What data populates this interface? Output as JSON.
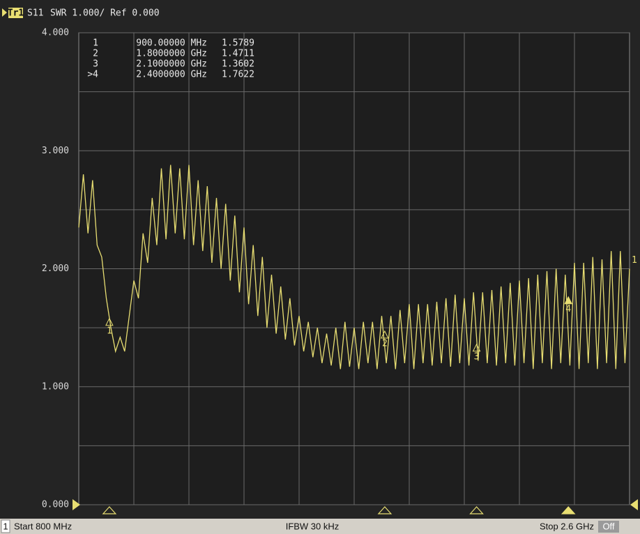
{
  "chart_data": {
    "type": "line",
    "header": {
      "trace": "Tr1",
      "parameter": "S11",
      "scale": "SWR 1.000/ Ref 0.000"
    },
    "xlim": [
      800,
      2600
    ],
    "ylim": [
      0,
      4
    ],
    "yticks": [
      {
        "value": 0,
        "label": "0.000"
      },
      {
        "value": 1,
        "label": "1.000"
      },
      {
        "value": 2,
        "label": "2.000"
      },
      {
        "value": 3,
        "label": "3.000"
      },
      {
        "value": 4,
        "label": "4.000"
      }
    ],
    "ygrid": [
      0.5,
      1.5,
      2.5,
      3.5
    ],
    "xgrid": [
      980,
      1160,
      1340,
      1520,
      1700,
      1880,
      2060,
      2240,
      2420
    ],
    "grid": true,
    "x": [
      800,
      815,
      830,
      845,
      860,
      875,
      890,
      905,
      920,
      935,
      950,
      965,
      980,
      995,
      1010,
      1025,
      1040,
      1055,
      1070,
      1085,
      1100,
      1115,
      1130,
      1145,
      1160,
      1175,
      1190,
      1205,
      1220,
      1235,
      1250,
      1265,
      1280,
      1295,
      1310,
      1325,
      1340,
      1355,
      1370,
      1385,
      1400,
      1415,
      1430,
      1445,
      1460,
      1475,
      1490,
      1505,
      1520,
      1535,
      1550,
      1565,
      1580,
      1595,
      1610,
      1625,
      1640,
      1655,
      1670,
      1685,
      1700,
      1715,
      1730,
      1745,
      1760,
      1775,
      1790,
      1805,
      1820,
      1835,
      1850,
      1865,
      1880,
      1895,
      1910,
      1925,
      1940,
      1955,
      1970,
      1985,
      2000,
      2015,
      2030,
      2045,
      2060,
      2075,
      2090,
      2105,
      2120,
      2135,
      2150,
      2165,
      2180,
      2195,
      2210,
      2225,
      2240,
      2255,
      2270,
      2285,
      2300,
      2315,
      2330,
      2345,
      2360,
      2375,
      2390,
      2405,
      2420,
      2435,
      2450,
      2465,
      2480,
      2495,
      2510,
      2525,
      2540,
      2555,
      2570,
      2585,
      2600
    ],
    "series": [
      {
        "name": "1",
        "color": "#e8de72",
        "values": [
          2.35,
          2.8,
          2.3,
          2.75,
          2.2,
          2.1,
          1.75,
          1.5,
          1.3,
          1.42,
          1.3,
          1.6,
          1.9,
          1.75,
          2.3,
          2.05,
          2.6,
          2.2,
          2.85,
          2.25,
          2.88,
          2.3,
          2.85,
          2.25,
          2.88,
          2.2,
          2.75,
          2.15,
          2.7,
          2.05,
          2.6,
          2.0,
          2.55,
          1.9,
          2.45,
          1.8,
          2.35,
          1.7,
          2.2,
          1.6,
          2.1,
          1.5,
          1.95,
          1.45,
          1.85,
          1.4,
          1.75,
          1.35,
          1.6,
          1.3,
          1.55,
          1.25,
          1.5,
          1.2,
          1.45,
          1.18,
          1.5,
          1.15,
          1.55,
          1.17,
          1.5,
          1.15,
          1.55,
          1.2,
          1.55,
          1.15,
          1.6,
          1.2,
          1.6,
          1.15,
          1.65,
          1.2,
          1.7,
          1.15,
          1.7,
          1.2,
          1.7,
          1.18,
          1.72,
          1.2,
          1.75,
          1.17,
          1.78,
          1.2,
          1.75,
          1.18,
          1.8,
          1.22,
          1.8,
          1.2,
          1.82,
          1.18,
          1.85,
          1.2,
          1.88,
          1.18,
          1.9,
          1.2,
          1.92,
          1.15,
          1.95,
          1.2,
          1.98,
          1.15,
          2.0,
          1.2,
          1.95,
          1.18,
          2.05,
          1.15,
          2.05,
          1.2,
          2.1,
          1.15,
          2.08,
          1.2,
          2.15,
          1.15,
          2.15,
          1.2,
          2.0
        ]
      }
    ],
    "markers": [
      {
        "label": "1",
        "table_label": "1",
        "x": 900,
        "x_label": "900.00000 MHz",
        "value": 1.5789,
        "value_label": "1.5789",
        "active": false
      },
      {
        "label": "2",
        "table_label": "2",
        "x": 1800,
        "x_label": "1.8000000 GHz",
        "value": 1.4711,
        "value_label": "1.4711",
        "active": false
      },
      {
        "label": "3",
        "table_label": "3",
        "x": 2100,
        "x_label": "2.1000000 GHz",
        "value": 1.3602,
        "value_label": "1.3602",
        "active": false
      },
      {
        "label": "4",
        "table_label": ">4",
        "x": 2400,
        "x_label": "2.4000000 GHz",
        "value": 1.7622,
        "value_label": "1.7622",
        "active": true
      }
    ],
    "status": {
      "channel": "1",
      "start": "Start 800 MHz",
      "ifbw": "IFBW 30 kHz",
      "stop": "Stop 2.6 GHz",
      "rf": "Off"
    }
  }
}
